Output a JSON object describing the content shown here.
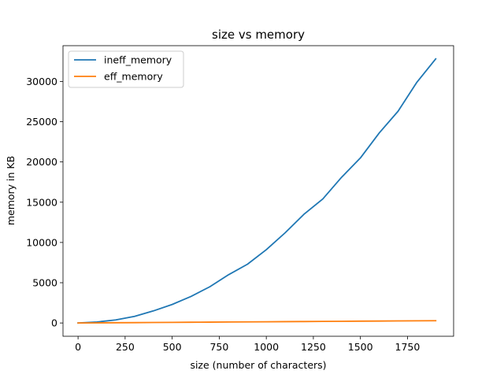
{
  "chart_data": {
    "type": "line",
    "title": "size vs memory",
    "xlabel": "size (number of characters)",
    "ylabel": "memory in KB",
    "xlim": [
      -80,
      1995
    ],
    "ylim": [
      -1650,
      34440
    ],
    "xticks": [
      0,
      250,
      500,
      750,
      1000,
      1250,
      1500,
      1750
    ],
    "yticks": [
      0,
      5000,
      10000,
      15000,
      20000,
      25000,
      30000
    ],
    "grid": false,
    "legend_position": "top-left",
    "series": [
      {
        "name": "ineff_memory",
        "color": "#1f77b4",
        "x": [
          0,
          100,
          200,
          300,
          400,
          500,
          600,
          700,
          800,
          900,
          1000,
          1100,
          1200,
          1300,
          1400,
          1500,
          1600,
          1700,
          1800,
          1900
        ],
        "y": [
          0,
          120,
          380,
          820,
          1500,
          2300,
          3300,
          4500,
          6000,
          7300,
          9100,
          11200,
          13500,
          15400,
          18100,
          20500,
          23600,
          26300,
          29900,
          32800
        ]
      },
      {
        "name": "eff_memory",
        "color": "#ff7f0e",
        "x": [
          0,
          100,
          200,
          300,
          400,
          500,
          600,
          700,
          800,
          900,
          1000,
          1100,
          1200,
          1300,
          1400,
          1500,
          1600,
          1700,
          1800,
          1900
        ],
        "y": [
          0,
          15,
          30,
          45,
          60,
          75,
          90,
          105,
          120,
          135,
          150,
          165,
          180,
          195,
          210,
          225,
          240,
          255,
          270,
          285
        ]
      }
    ]
  }
}
